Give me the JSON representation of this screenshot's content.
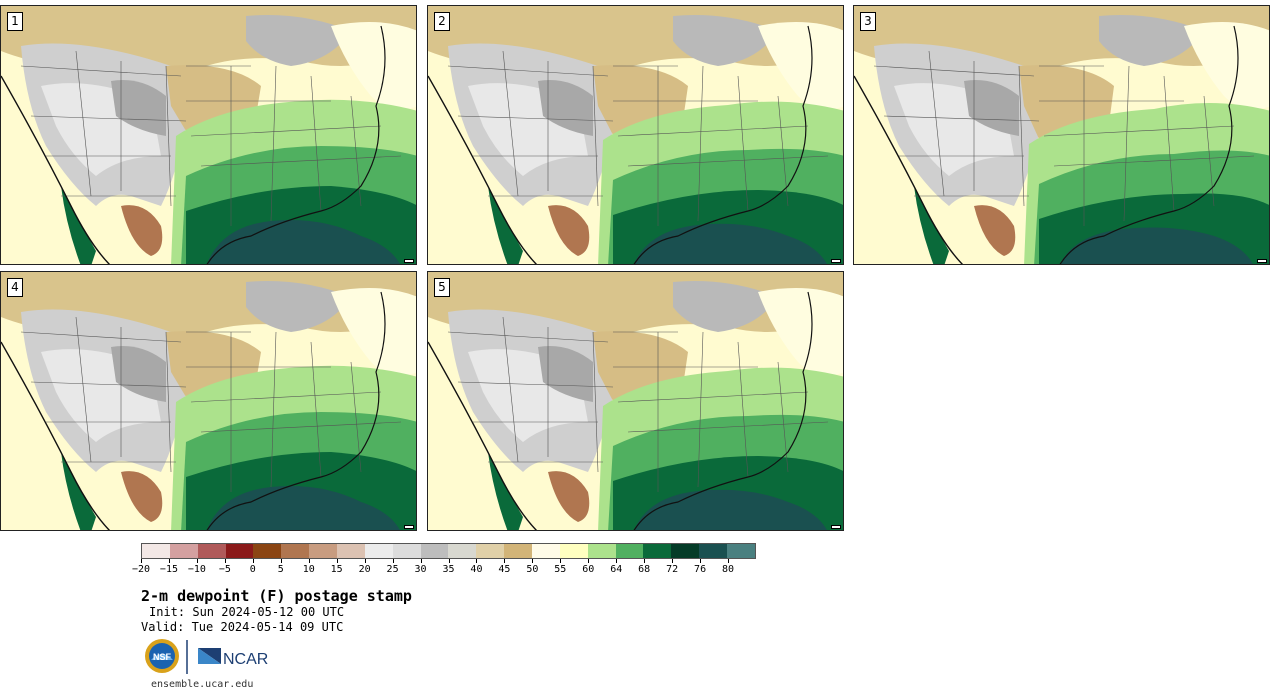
{
  "panels": [
    {
      "label": "1"
    },
    {
      "label": "2"
    },
    {
      "label": "3"
    },
    {
      "label": "4"
    },
    {
      "label": "5"
    }
  ],
  "colorbar": {
    "colors": [
      "#f3e8e6",
      "#d4a0a0",
      "#b05a5a",
      "#8b1a1a",
      "#8b4513",
      "#b07650",
      "#c89c80",
      "#dcc2b2",
      "#ececec",
      "#dcdcdc",
      "#bdbdbd",
      "#d8d8d0",
      "#e0d0a8",
      "#d2b478",
      "#fffbe8",
      "#ffffc0",
      "#ace28c",
      "#50b060",
      "#0a6a3a",
      "#053c28",
      "#1a5050",
      "#4a8080"
    ],
    "tick_labels": [
      "−20",
      "−15",
      "−10",
      "−5",
      "0",
      "5",
      "10",
      "15",
      "20",
      "25",
      "30",
      "35",
      "40",
      "45",
      "50",
      "55",
      "60",
      "64",
      "68",
      "72",
      "76",
      "80"
    ]
  },
  "title": "2-m dewpoint (F) postage stamp",
  "init": "Init: Sun 2024-05-12 00 UTC",
  "valid": "Valid: Tue 2024-05-14 09 UTC",
  "logos": {
    "nsf": "NSF",
    "ncar": "NCAR"
  },
  "url": "ensemble.ucar.edu"
}
